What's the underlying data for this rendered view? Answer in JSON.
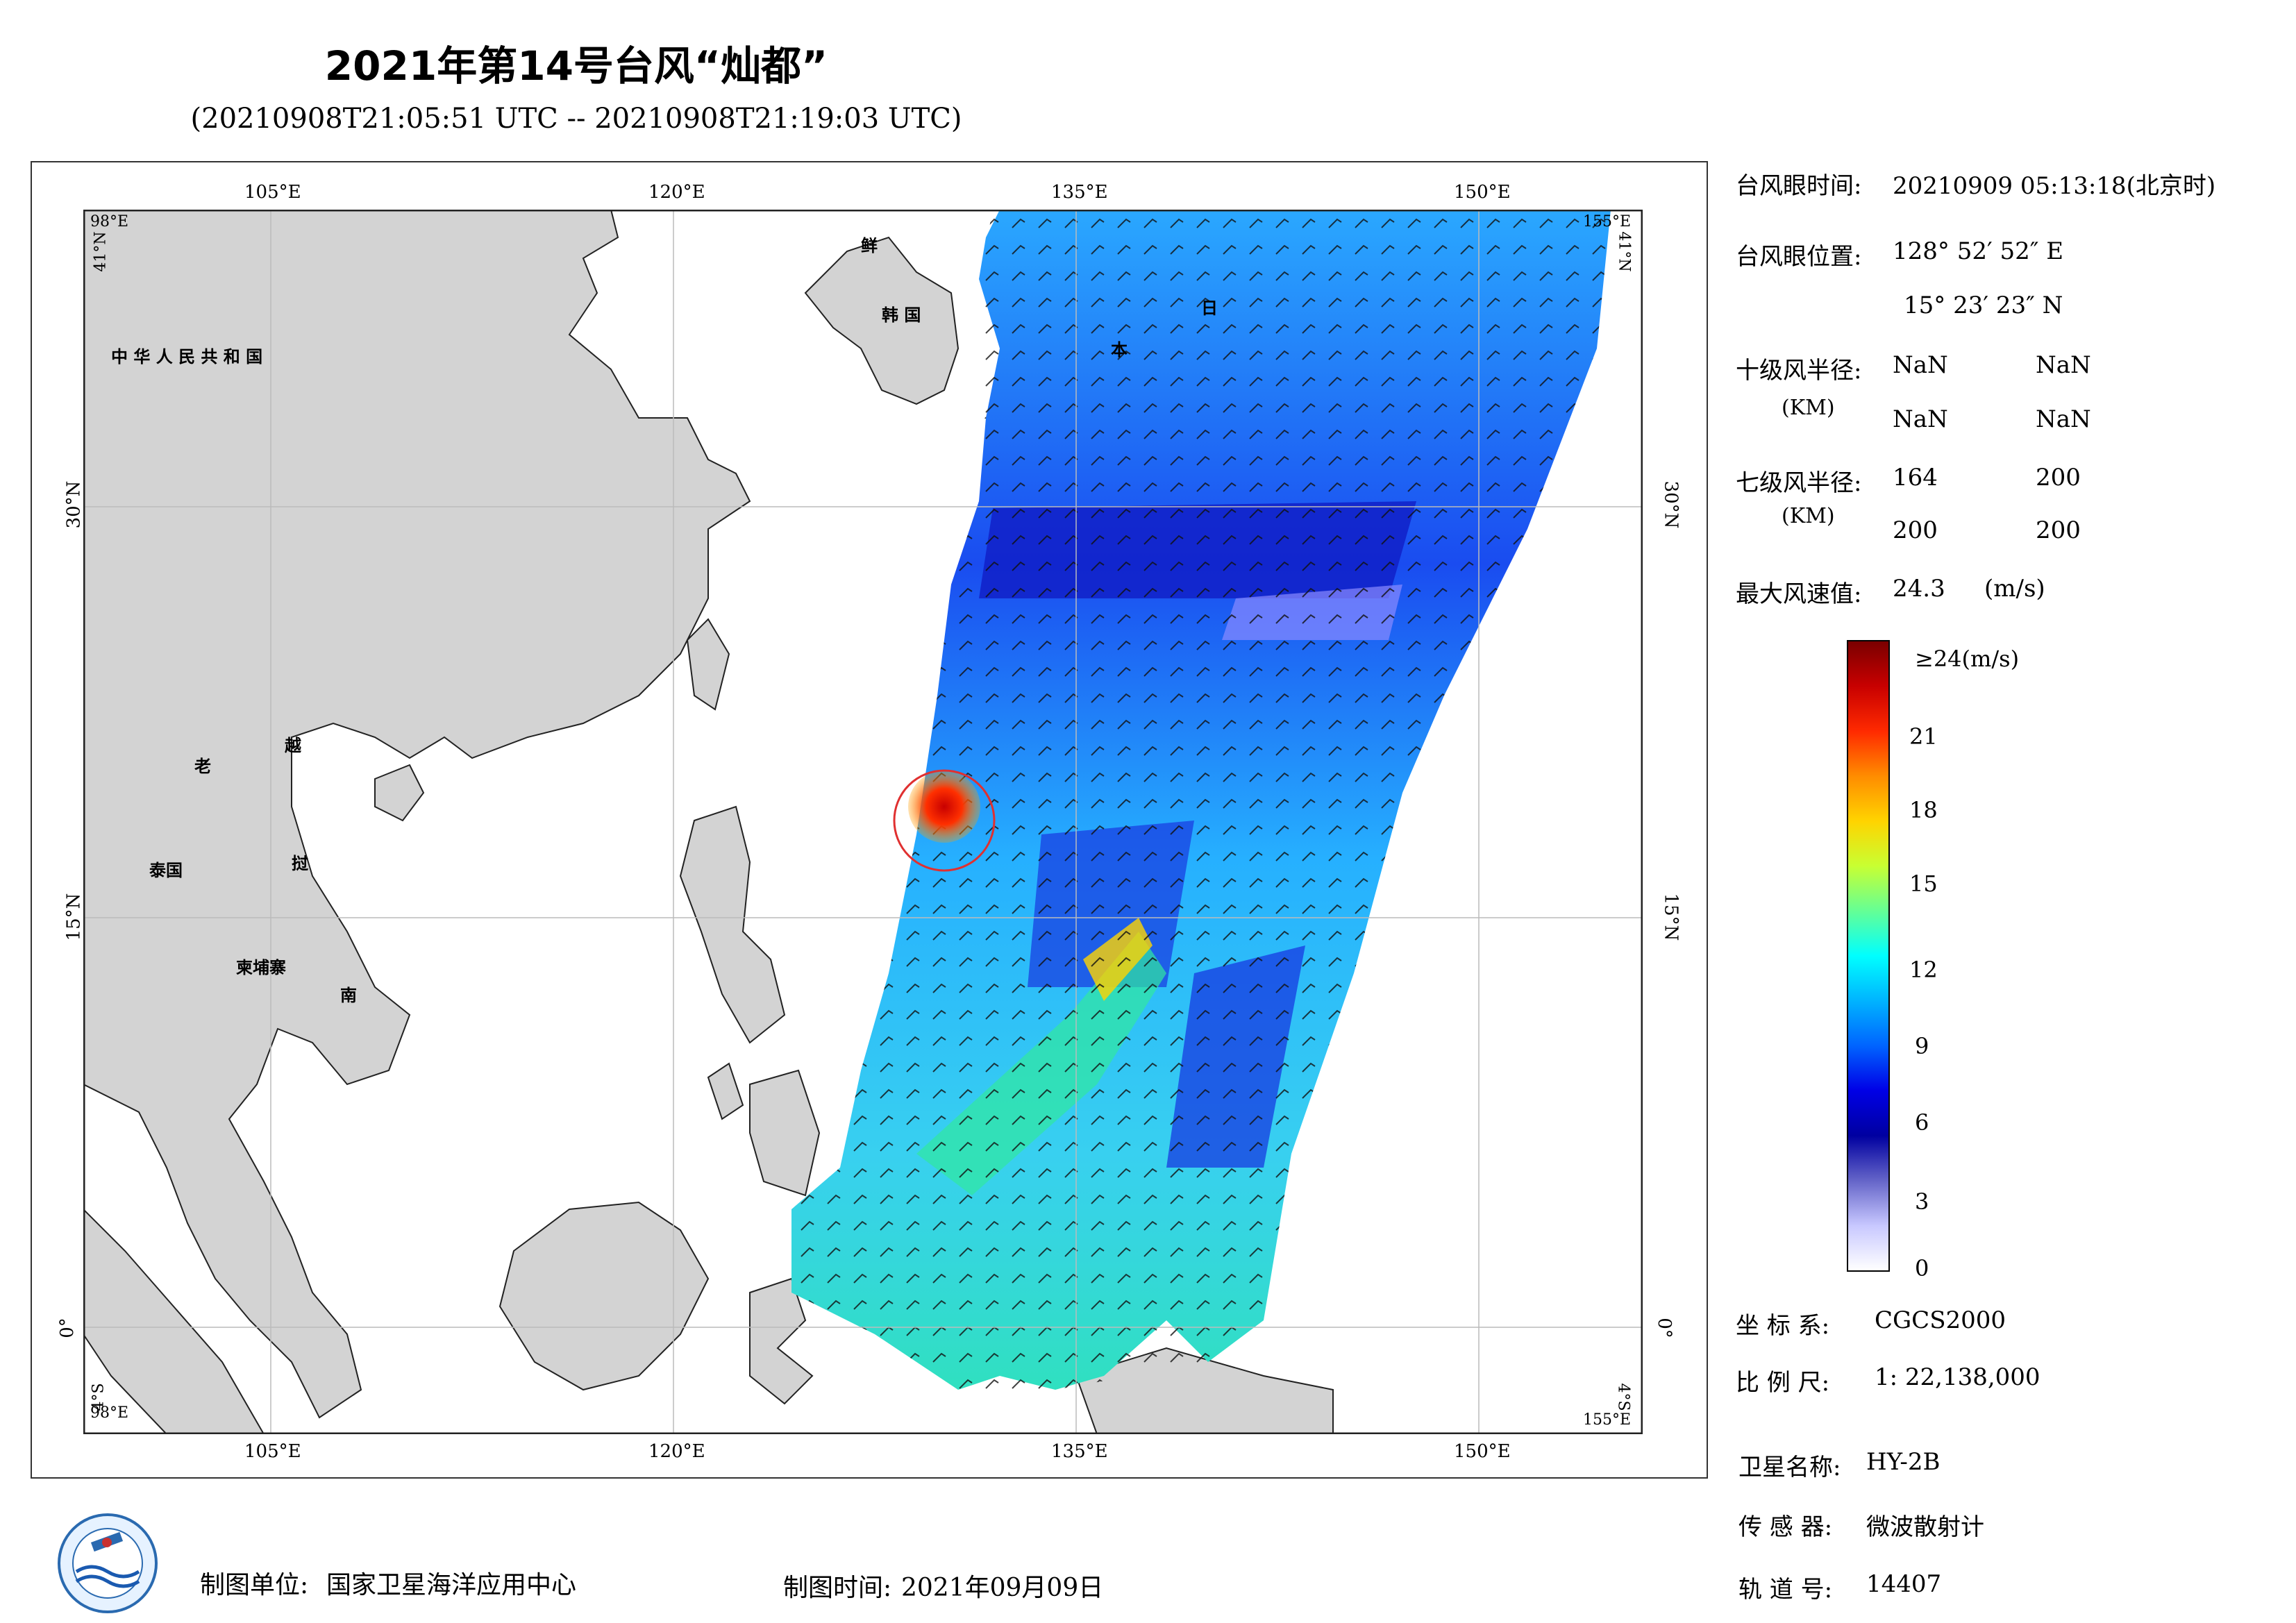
{
  "header": {
    "title": "2021年第14号台风“灿都”",
    "subtitle": "(20210908T21:05:51 UTC -- 20210908T21:19:03 UTC)"
  },
  "map": {
    "lon_labels": [
      "105°E",
      "120°E",
      "135°E",
      "150°E"
    ],
    "lat_labels": [
      "30°N",
      "15°N",
      "0°"
    ],
    "corner_labels": {
      "top_left_lon": "98°E",
      "top_left_lat": "41°N",
      "top_right_lon": "155°E",
      "top_right_lat": "41°N",
      "bottom_left_lon": "98°E",
      "bottom_left_lat": "4°S",
      "bottom_right_lon": "155°E",
      "bottom_right_lat": "4°S"
    },
    "place_labels": {
      "china": "中 华 人 民 共 和 国",
      "korea_n": "鲜",
      "korea_s": "韩 国",
      "japan_1": "日",
      "japan_2": "本",
      "laos": "老",
      "vietnam_1": "越",
      "vietnam_2": "南",
      "thailand": "泰国",
      "cambodia": "柬埔寨",
      "vietnam_mid": "挝"
    },
    "land_color": "#d3d3d3",
    "ocean_color": "#ffffff",
    "typhoon_circle_color": "#e03030"
  },
  "info": {
    "eye_time_label": "台风眼时间:",
    "eye_time_value": "20210909 05:13:18(北京时)",
    "eye_pos_label": "台风眼位置:",
    "eye_pos_lon": "128° 52′ 52″ E",
    "eye_pos_lat": "15° 23′ 23″ N",
    "r10_label": "十级风半径:",
    "r10_unit": "(KM)",
    "r10_values": [
      "NaN",
      "NaN",
      "NaN",
      "NaN"
    ],
    "r7_label": "七级风半径:",
    "r7_unit": "(KM)",
    "r7_values": [
      "164",
      "200",
      "200",
      "200"
    ],
    "max_wind_label": "最大风速值:",
    "max_wind_value": "24.3",
    "max_wind_unit": "(m/s)"
  },
  "colorbar": {
    "top_label": "≥24(m/s)",
    "ticks": [
      "21",
      "18",
      "15",
      "12",
      "9",
      "6",
      "3",
      "0"
    ],
    "colors": [
      "#7a0000",
      "#c80000",
      "#ff2a00",
      "#ff8c00",
      "#ffd400",
      "#c8ff32",
      "#64ff96",
      "#00ffff",
      "#00b4ff",
      "#0064ff",
      "#0000e6",
      "#0000a0",
      "#6464c8",
      "#c8c8ff",
      "#ffffff"
    ]
  },
  "meta": {
    "crs_label": "坐 标 系:",
    "crs_value": "CGCS2000",
    "scale_label": "比 例 尺:",
    "scale_value": "1: 22,138,000",
    "sat_label": "卫星名称:",
    "sat_value": "HY-2B",
    "sensor_label": "传 感 器:",
    "sensor_value": "微波散射计",
    "orbit_label": "轨 道 号:",
    "orbit_value": "14407"
  },
  "footer": {
    "unit_label": "制图单位:",
    "unit_value": "国家卫星海洋应用中心",
    "time_label": "制图时间:",
    "time_value": "2021年09月09日"
  },
  "logo": {
    "name": "nsoas-logo"
  }
}
